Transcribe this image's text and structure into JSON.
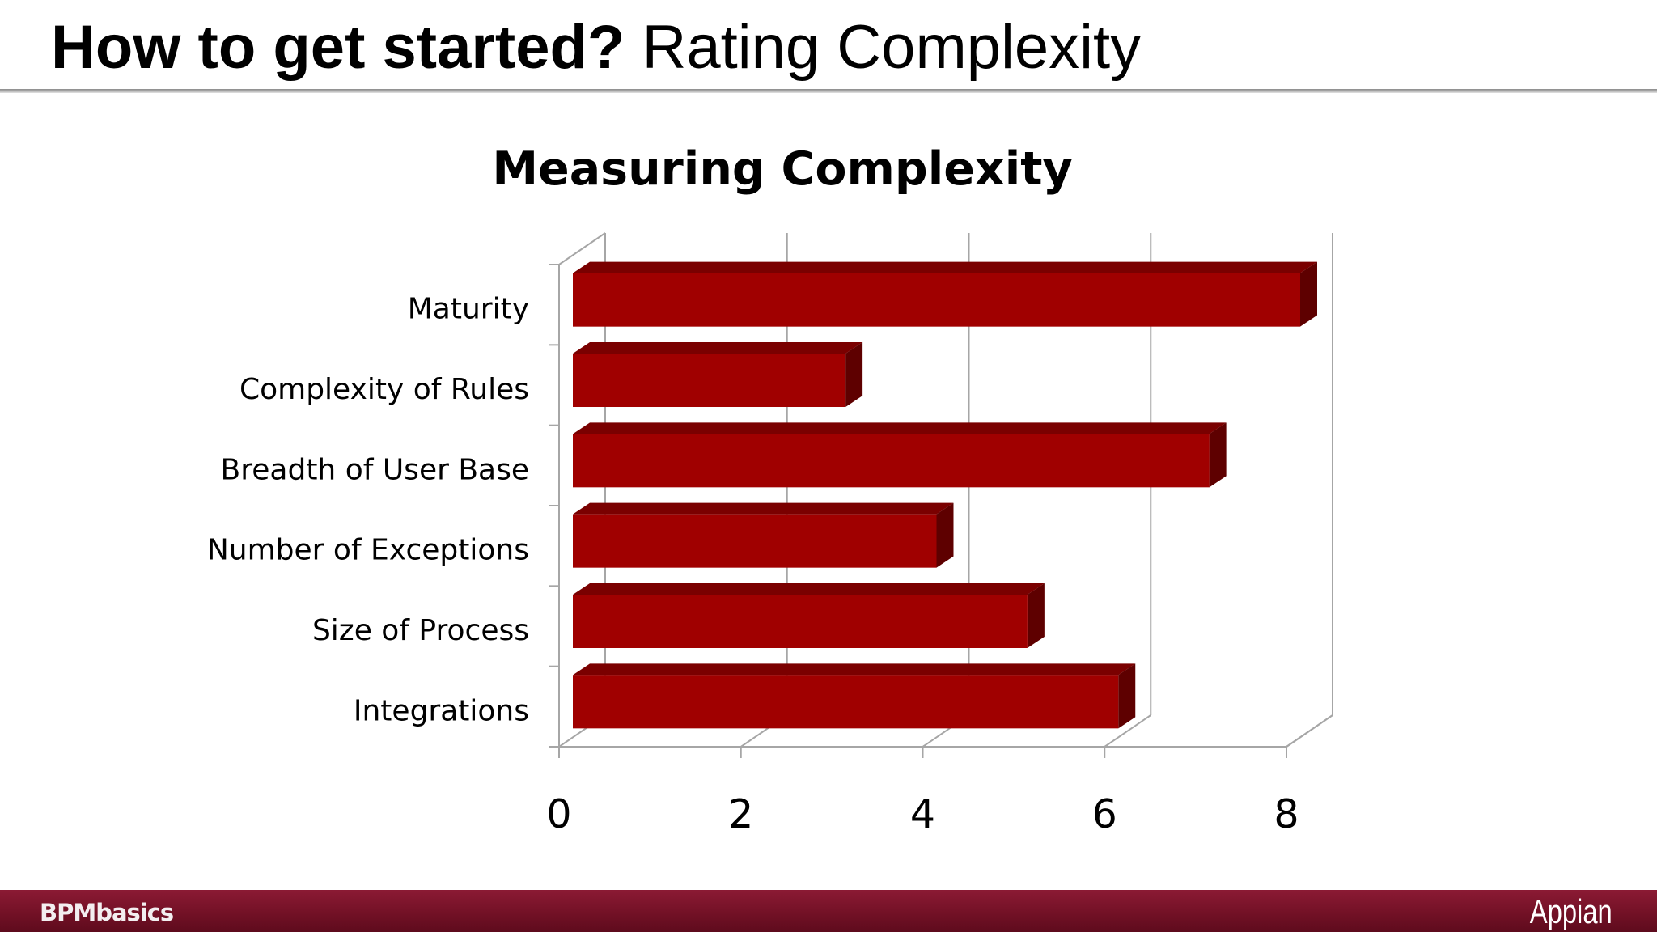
{
  "slide": {
    "title_bold": "How to get started?",
    "title_regular": "Rating Complexity"
  },
  "chart_data": {
    "type": "bar",
    "orientation": "horizontal",
    "style": "3d",
    "title": "Measuring Complexity",
    "categories": [
      "Maturity",
      "Complexity of Rules",
      "Breadth of User Base",
      "Number of Exceptions",
      "Size of Process",
      "Integrations"
    ],
    "values": [
      8,
      3,
      7,
      4,
      5,
      6
    ],
    "xlim": [
      0,
      8
    ],
    "xticks": [
      "0",
      "2",
      "4",
      "6",
      "8"
    ],
    "xlabel": "",
    "ylabel": "",
    "grid": true,
    "legend": "none",
    "bar_color": "#a00000"
  },
  "footer": {
    "left_text": "BPMbasics",
    "right_text": "Appian",
    "color": "#7a1229"
  }
}
